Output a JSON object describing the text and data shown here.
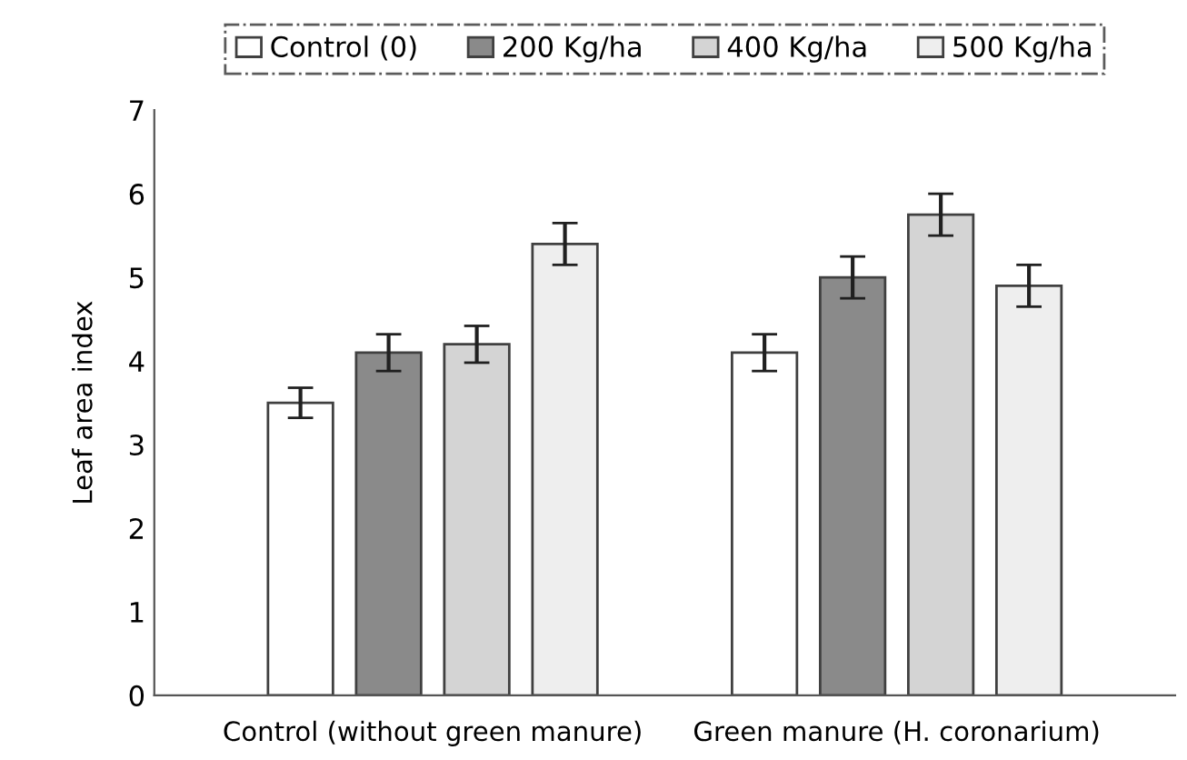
{
  "chart_data": {
    "type": "bar",
    "ylabel": "Leaf area index",
    "categories": [
      "Control (without green manure)",
      "Green manure (H. coronarium)"
    ],
    "series": [
      {
        "name": "Control (0)",
        "color": "#ffffff",
        "values": [
          3.5,
          4.1
        ],
        "errors": [
          0.18,
          0.22
        ]
      },
      {
        "name": "200 Kg/ha",
        "color": "#8a8a8a",
        "values": [
          4.1,
          5.0
        ],
        "errors": [
          0.22,
          0.25
        ]
      },
      {
        "name": "400 Kg/ha",
        "color": "#d4d4d4",
        "values": [
          4.2,
          5.75
        ],
        "errors": [
          0.22,
          0.25
        ]
      },
      {
        "name": "500 Kg/ha",
        "color": "#eeeeee",
        "values": [
          5.4,
          4.9
        ],
        "errors": [
          0.25,
          0.25
        ]
      }
    ],
    "ylim": [
      0,
      7
    ],
    "yticks": [
      0,
      1,
      2,
      3,
      4,
      5,
      6,
      7
    ],
    "grid": false,
    "legend": "top"
  }
}
